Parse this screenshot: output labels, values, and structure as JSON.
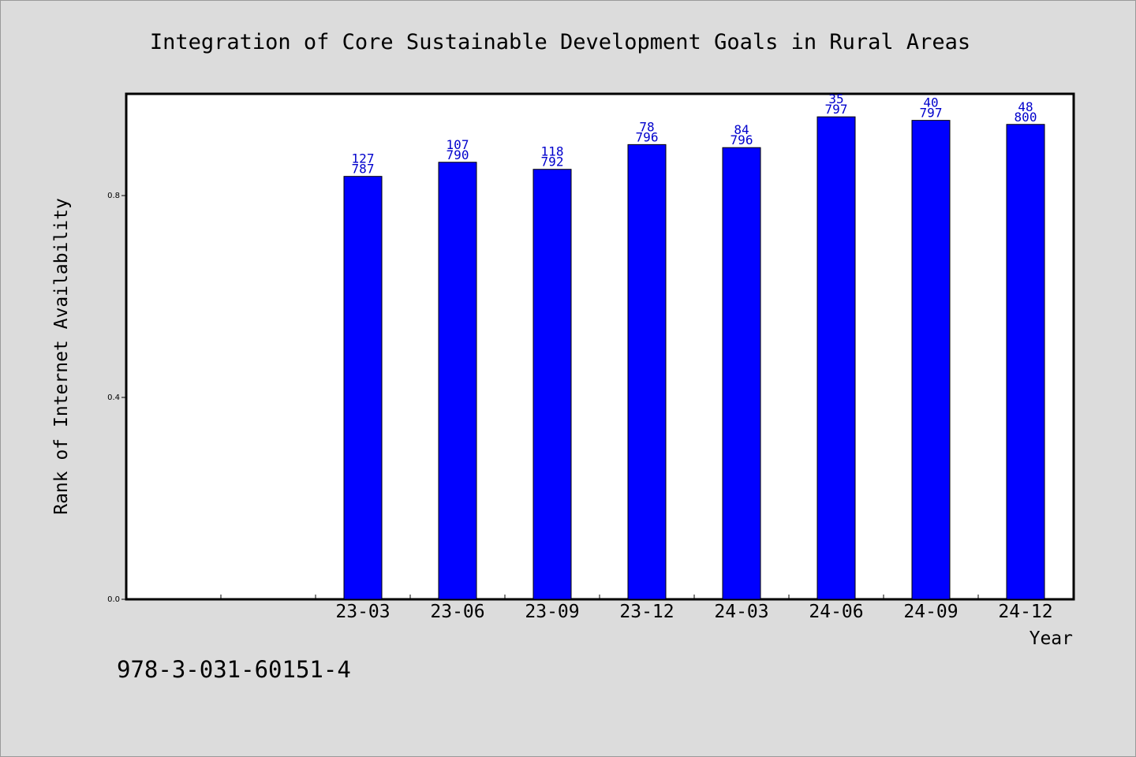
{
  "chart_data": {
    "type": "bar",
    "title": "Integration of Core Sustainable Development Goals in Rural Areas",
    "xlabel": "Year",
    "ylabel": "Rank of Internet Availability",
    "ylim": [
      0,
      1.0
    ],
    "yticks": [
      "0.0",
      "0.4",
      "0.8"
    ],
    "ytick_values": [
      0.0,
      0.4,
      0.8
    ],
    "categories": [
      "",
      "",
      "23-03",
      "23-06",
      "23-09",
      "23-12",
      "24-03",
      "24-06",
      "24-09",
      "24-12"
    ],
    "values": [
      null,
      null,
      0.838,
      0.866,
      0.852,
      0.901,
      0.895,
      0.956,
      0.949,
      0.941
    ],
    "rank_labels": [
      "",
      "",
      "127",
      "107",
      "118",
      "78",
      "84",
      "35",
      "40",
      "48"
    ],
    "count_labels": [
      "",
      "",
      "787",
      "790",
      "792",
      "796",
      "796",
      "797",
      "797",
      "800"
    ],
    "bar_color": "#0000ff",
    "label_color": "#0000cc",
    "grid": false,
    "legend": "none"
  },
  "footer": {
    "isbn": "978-3-031-60151-4"
  }
}
